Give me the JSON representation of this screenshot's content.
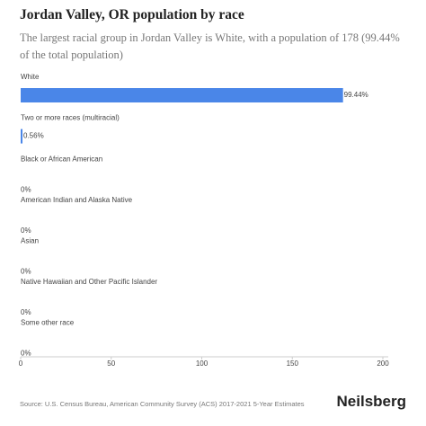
{
  "chart_data": {
    "type": "hbar",
    "title": "Jordan Valley, OR population by race",
    "subtitle": "The largest racial group in Jordan Valley is White, with a population of 178 (99.44% of the total population)",
    "categories": [
      "White",
      "Two or more races (multiracial)",
      "Black or African American",
      "American Indian and Alaska Native",
      "Asian",
      "Native Hawaiian and Other Pacific Islander",
      "Some other race"
    ],
    "values": [
      178,
      1,
      0,
      0,
      0,
      0,
      0
    ],
    "value_labels": [
      "99.44%",
      "0.56%",
      "0%",
      "0%",
      "0%",
      "0%",
      "0%"
    ],
    "color": "#4a86e8",
    "xlim": [
      0,
      200
    ],
    "xticks": [
      0,
      50,
      100,
      150,
      200
    ],
    "source": "Source: U.S. Census Bureau, American Community Survey (ACS) 2017-2021 5-Year Estimates",
    "brand": "Neilsberg"
  }
}
